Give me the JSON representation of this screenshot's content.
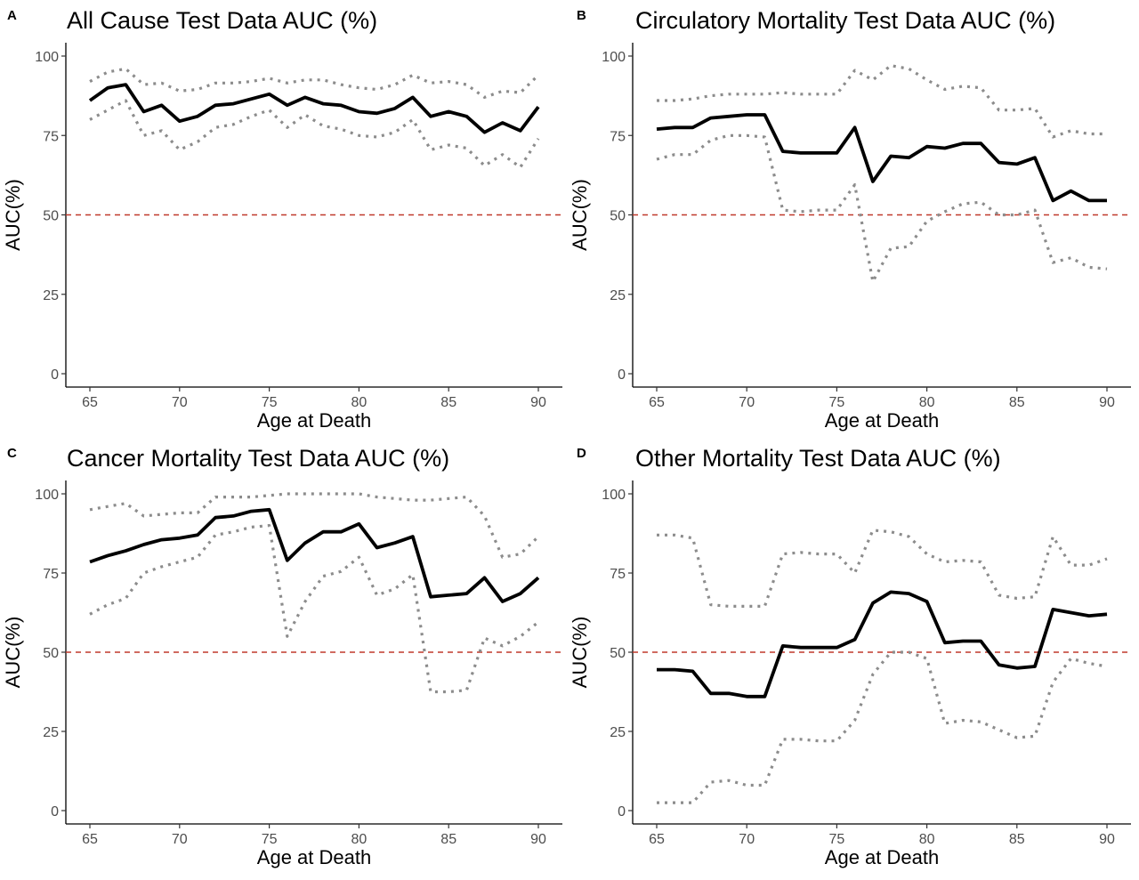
{
  "chart_data": [
    {
      "panel": "A",
      "type": "line",
      "title": "All Cause Test Data AUC (%)",
      "xlabel": "Age at Death",
      "ylabel": "AUC(%)",
      "xlim": [
        65,
        90
      ],
      "ylim": [
        0,
        100
      ],
      "xticks": [
        65,
        70,
        75,
        80,
        85,
        90
      ],
      "yticks": [
        0,
        25,
        50,
        75,
        100
      ],
      "reference_line": {
        "y": 50,
        "color": "#c0392b",
        "style": "dashed"
      },
      "grid": false,
      "x": [
        65,
        66,
        67,
        68,
        69,
        70,
        71,
        72,
        73,
        74,
        75,
        76,
        77,
        78,
        79,
        80,
        81,
        82,
        83,
        84,
        85,
        86,
        87,
        88,
        89,
        90
      ],
      "series": [
        {
          "role": "estimate",
          "style": "solid",
          "color": "#000000",
          "values": [
            86,
            90,
            91,
            82.5,
            84.5,
            79.5,
            81,
            84.5,
            85,
            86.5,
            88,
            84.5,
            87,
            85,
            84.5,
            82.5,
            82,
            83.5,
            87,
            81,
            82.5,
            81,
            76,
            79,
            76.5,
            84
          ]
        },
        {
          "role": "upper",
          "style": "dotted",
          "color": "#8c8c8c",
          "values": [
            92,
            95,
            96,
            91,
            91.5,
            89,
            89.5,
            91.5,
            91.5,
            92,
            93,
            91.5,
            92.5,
            92.5,
            91,
            90,
            89.5,
            91,
            94,
            91.5,
            92,
            91,
            87,
            89,
            88.5,
            94
          ]
        },
        {
          "role": "lower",
          "style": "dotted",
          "color": "#8c8c8c",
          "values": [
            80,
            83,
            86,
            75,
            76.5,
            70.5,
            73,
            77.5,
            78.5,
            81,
            83,
            77.5,
            81.5,
            78,
            77,
            75,
            74.5,
            76,
            80,
            70.5,
            72,
            71,
            65.5,
            69,
            65,
            74
          ]
        }
      ]
    },
    {
      "panel": "B",
      "type": "line",
      "title": "Circulatory Mortality Test Data AUC (%)",
      "xlabel": "Age at Death",
      "ylabel": "AUC(%)",
      "xlim": [
        65,
        90
      ],
      "ylim": [
        0,
        100
      ],
      "xticks": [
        65,
        70,
        75,
        80,
        85,
        90
      ],
      "yticks": [
        0,
        25,
        50,
        75,
        100
      ],
      "reference_line": {
        "y": 50,
        "color": "#c0392b",
        "style": "dashed"
      },
      "grid": false,
      "x": [
        65,
        66,
        67,
        68,
        69,
        70,
        71,
        72,
        73,
        74,
        75,
        76,
        77,
        78,
        79,
        80,
        81,
        82,
        83,
        84,
        85,
        86,
        87,
        88,
        89,
        90
      ],
      "series": [
        {
          "role": "estimate",
          "style": "solid",
          "color": "#000000",
          "values": [
            77,
            77.5,
            77.5,
            80.5,
            81,
            81.5,
            81.5,
            70,
            69.5,
            69.5,
            69.5,
            77.5,
            60.5,
            68.5,
            68,
            71.5,
            71,
            72.5,
            72.5,
            66.5,
            66,
            68,
            54.5,
            57.5,
            54.5,
            54.5
          ]
        },
        {
          "role": "upper",
          "style": "dotted",
          "color": "#8c8c8c",
          "values": [
            86,
            86,
            86.5,
            87.5,
            88,
            88,
            88,
            88.5,
            88,
            88,
            88,
            95.5,
            92.5,
            97,
            96,
            92.5,
            89.5,
            90.5,
            90,
            83,
            83,
            83.5,
            74.5,
            76.5,
            75.5,
            75.5
          ]
        },
        {
          "role": "lower",
          "style": "dotted",
          "color": "#8c8c8c",
          "values": [
            67.5,
            69,
            69,
            73.5,
            75,
            75,
            74.5,
            51.5,
            51,
            51.5,
            51.5,
            59.5,
            29,
            39.5,
            40,
            48,
            51,
            53.5,
            54,
            50,
            50,
            51.5,
            35,
            36.5,
            33.5,
            33
          ]
        }
      ]
    },
    {
      "panel": "C",
      "type": "line",
      "title": "Cancer Mortality Test Data AUC (%)",
      "xlabel": "Age at Death",
      "ylabel": "AUC(%)",
      "xlim": [
        65,
        90
      ],
      "ylim": [
        0,
        100
      ],
      "xticks": [
        65,
        70,
        75,
        80,
        85,
        90
      ],
      "yticks": [
        0,
        25,
        50,
        75,
        100
      ],
      "reference_line": {
        "y": 50,
        "color": "#c0392b",
        "style": "dashed"
      },
      "grid": false,
      "x": [
        65,
        66,
        67,
        68,
        69,
        70,
        71,
        72,
        73,
        74,
        75,
        76,
        77,
        78,
        79,
        80,
        81,
        82,
        83,
        84,
        85,
        86,
        87,
        88,
        89,
        90
      ],
      "series": [
        {
          "role": "estimate",
          "style": "solid",
          "color": "#000000",
          "values": [
            78.5,
            80.5,
            82,
            84,
            85.5,
            86,
            87,
            92.5,
            93,
            94.5,
            95,
            79,
            84.5,
            88,
            88,
            90.5,
            83,
            84.5,
            86.5,
            67.5,
            68,
            68.5,
            73.5,
            66,
            68.5,
            73.5
          ]
        },
        {
          "role": "upper",
          "style": "dotted",
          "color": "#8c8c8c",
          "values": [
            95,
            96,
            97,
            93,
            93.5,
            94,
            94,
            99,
            99,
            99,
            99.5,
            100,
            100,
            100,
            100,
            100,
            99,
            98.5,
            98,
            98,
            98.5,
            99,
            93,
            80,
            81,
            86.5
          ]
        },
        {
          "role": "lower",
          "style": "dotted",
          "color": "#8c8c8c",
          "values": [
            62,
            65,
            67,
            75,
            77,
            78.5,
            80,
            87,
            88,
            89.5,
            90,
            55,
            66,
            74,
            75.5,
            80,
            68,
            70,
            74.5,
            37.5,
            37.5,
            38,
            54.5,
            52,
            55,
            59.5
          ]
        }
      ]
    },
    {
      "panel": "D",
      "type": "line",
      "title": "Other Mortality Test Data AUC (%)",
      "xlabel": "Age at Death",
      "ylabel": "AUC(%)",
      "xlim": [
        65,
        90
      ],
      "ylim": [
        0,
        100
      ],
      "xticks": [
        65,
        70,
        75,
        80,
        85,
        90
      ],
      "yticks": [
        0,
        25,
        50,
        75,
        100
      ],
      "reference_line": {
        "y": 50,
        "color": "#c0392b",
        "style": "dashed"
      },
      "grid": false,
      "x": [
        65,
        66,
        67,
        68,
        69,
        70,
        71,
        72,
        73,
        74,
        75,
        76,
        77,
        78,
        79,
        80,
        81,
        82,
        83,
        84,
        85,
        86,
        87,
        88,
        89,
        90
      ],
      "series": [
        {
          "role": "estimate",
          "style": "solid",
          "color": "#000000",
          "values": [
            44.5,
            44.5,
            44,
            37,
            37,
            36,
            36,
            52,
            51.5,
            51.5,
            51.5,
            54,
            65.5,
            69,
            68.5,
            66,
            53,
            53.5,
            53.5,
            46,
            45,
            45.5,
            63.5,
            62.5,
            61.5,
            62
          ]
        },
        {
          "role": "upper",
          "style": "dotted",
          "color": "#8c8c8c",
          "values": [
            87,
            87,
            86,
            65,
            64.5,
            64.5,
            64.5,
            81,
            81.5,
            81,
            81,
            75,
            88.5,
            88,
            86.5,
            81,
            78.5,
            79,
            78.5,
            68,
            67,
            67.5,
            86.5,
            77.5,
            77.5,
            79.5
          ]
        },
        {
          "role": "lower",
          "style": "dotted",
          "color": "#8c8c8c",
          "values": [
            2.5,
            2.5,
            2.5,
            9,
            9.5,
            8,
            8,
            22.5,
            22.5,
            22,
            22,
            28.5,
            43,
            50,
            50,
            48,
            27.5,
            28.5,
            28,
            25.5,
            23,
            23.5,
            40.5,
            48,
            46.5,
            45.5
          ]
        }
      ]
    }
  ]
}
